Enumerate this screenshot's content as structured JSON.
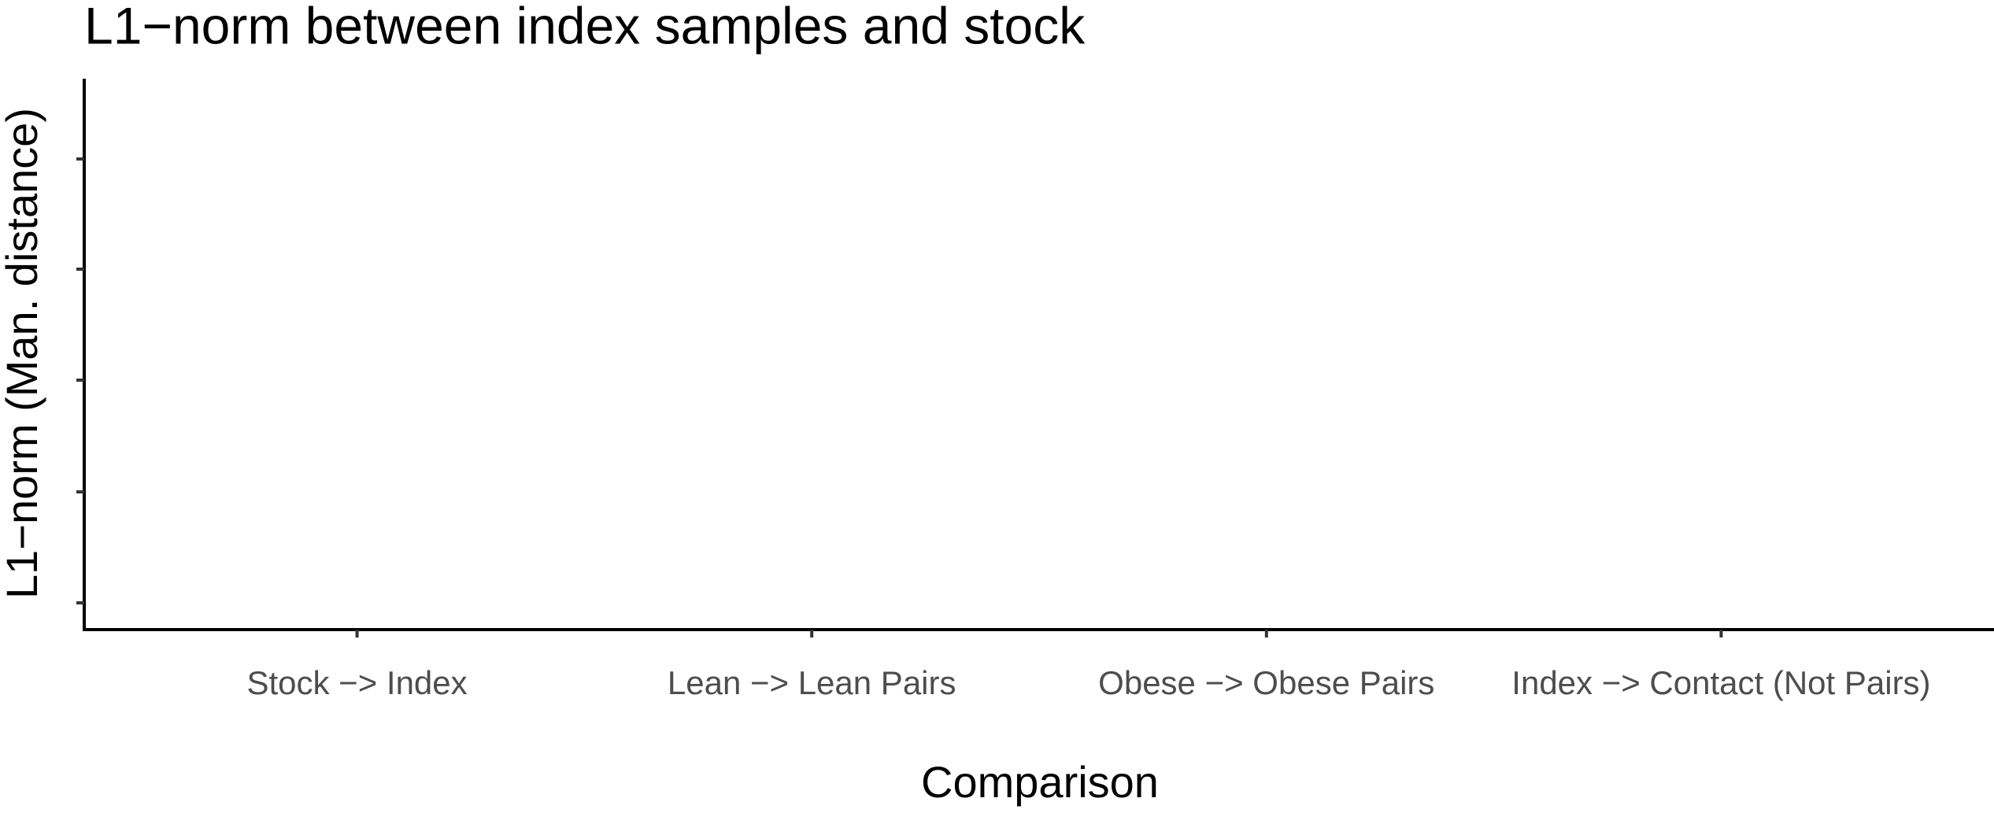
{
  "chart_data": {
    "type": "bar",
    "title": "L1−norm between index samples and stock",
    "x_label": "Comparison",
    "y_label": "L1−norm (Man. distance)",
    "categories": [
      "Stock −> Index",
      "Lean −> Lean Pairs",
      "Obese −> Obese Pairs",
      "Index −> Contact (Not Pairs)"
    ]
  }
}
